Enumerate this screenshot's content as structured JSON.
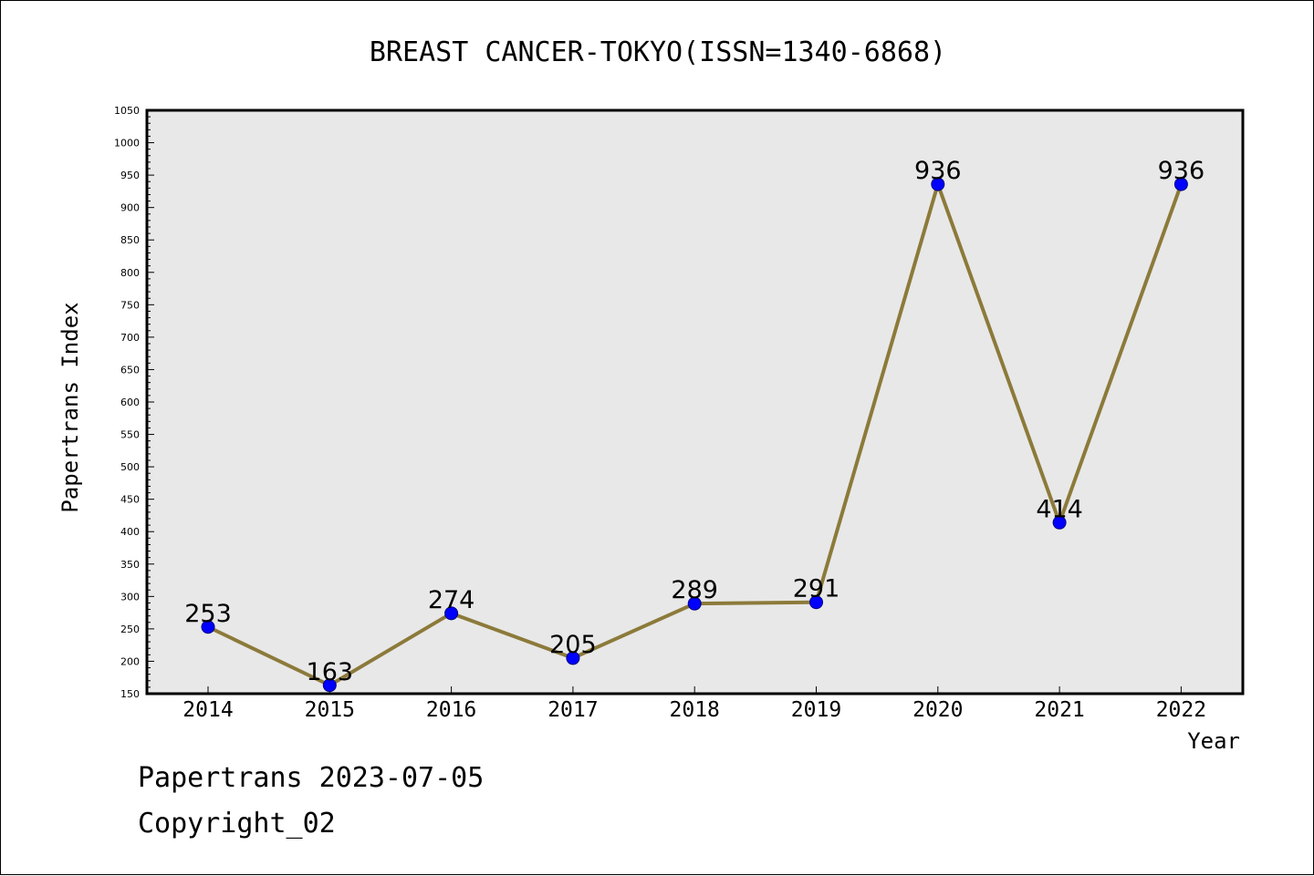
{
  "footer": {
    "line1": "Papertrans 2023-07-05",
    "line2": "Copyright_02"
  },
  "chart_data": {
    "type": "line",
    "title": "BREAST CANCER-TOKYO(ISSN=1340-6868)",
    "xlabel": "Year",
    "ylabel": "Papertrans Index",
    "categories": [
      "2014",
      "2015",
      "2016",
      "2017",
      "2018",
      "2019",
      "2020",
      "2021",
      "2022"
    ],
    "values": [
      253,
      163,
      274,
      205,
      289,
      291,
      936,
      414,
      936
    ],
    "data_labels": [
      "253",
      "163",
      "274",
      "205",
      "289",
      "291",
      "936",
      "414",
      "936"
    ],
    "ylim": [
      150,
      1050
    ],
    "yticks": [
      150,
      200,
      250,
      300,
      350,
      400,
      450,
      500,
      550,
      600,
      650,
      700,
      750,
      800,
      850,
      900,
      950,
      1000,
      1050
    ],
    "grid": false,
    "colors": {
      "line": "#8c7a3a",
      "marker": "#0000ff",
      "marker_edge": "#000080",
      "plot_bg": "#e8e8e8"
    }
  }
}
